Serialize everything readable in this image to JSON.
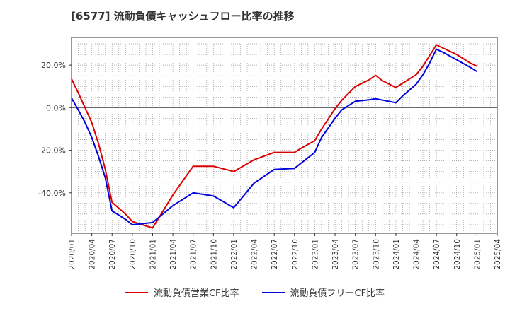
{
  "chart_data": {
    "type": "line",
    "title": "[6577]  流動負債キャッシュフロー比率の推移",
    "xlabel": "",
    "ylabel": "",
    "ylim": [
      -59,
      33
    ],
    "xlim": [
      "2020-01",
      "2025-04"
    ],
    "grid": true,
    "legend_position": "bottom",
    "y_ticks": [
      {
        "value": 20,
        "label": "20.0%"
      },
      {
        "value": 0,
        "label": "0.0%"
      },
      {
        "value": -20,
        "label": "-20.0%"
      },
      {
        "value": -40,
        "label": "-40.0%"
      }
    ],
    "x_ticks": [
      "2020/01",
      "2020/04",
      "2020/07",
      "2020/10",
      "2021/01",
      "2021/04",
      "2021/07",
      "2021/10",
      "2022/01",
      "2022/04",
      "2022/07",
      "2022/10",
      "2023/01",
      "2023/04",
      "2023/07",
      "2023/10",
      "2024/01",
      "2024/04",
      "2024/07",
      "2024/10",
      "2025/01",
      "2025/04"
    ],
    "series": [
      {
        "name": "流動負債営業CF比率",
        "color": "#dd0000",
        "x": [
          "2020-01",
          "2020-02",
          "2020-03",
          "2020-04",
          "2020-05",
          "2020-06",
          "2020-07",
          "2020-09",
          "2020-10",
          "2020-12",
          "2021-01",
          "2021-04",
          "2021-07",
          "2021-10",
          "2022-01",
          "2022-04",
          "2022-07",
          "2022-10",
          "2022-11",
          "2023-01",
          "2023-02",
          "2023-04",
          "2023-05",
          "2023-07",
          "2023-09",
          "2023-10",
          "2023-11",
          "2024-01",
          "2024-04",
          "2024-05",
          "2024-06",
          "2024-07",
          "2024-08",
          "2024-10",
          "2024-12",
          "2025-01"
        ],
        "values": [
          13.5,
          7,
          0,
          -7,
          -17,
          -29,
          -44.5,
          -50,
          -53.5,
          -55.5,
          -56.5,
          -41,
          -27.5,
          -27.5,
          -30,
          -24.5,
          -21,
          -21,
          -19,
          -15.5,
          -10,
          -0.5,
          3.5,
          10,
          13,
          15.2,
          12.7,
          9.5,
          15.5,
          19.5,
          24.5,
          29.5,
          28,
          25,
          21,
          19.5
        ]
      },
      {
        "name": "流動負債フリーCF比率",
        "color": "#0000dd",
        "x": [
          "2020-01",
          "2020-02",
          "2020-03",
          "2020-04",
          "2020-05",
          "2020-06",
          "2020-07",
          "2020-09",
          "2020-10",
          "2021-01",
          "2021-04",
          "2021-07",
          "2021-10",
          "2022-01",
          "2022-04",
          "2022-07",
          "2022-10",
          "2023-01",
          "2023-02",
          "2023-04",
          "2023-05",
          "2023-07",
          "2023-09",
          "2023-10",
          "2024-01",
          "2024-02",
          "2024-04",
          "2024-05",
          "2024-06",
          "2024-07",
          "2024-08",
          "2024-10",
          "2024-12",
          "2025-01"
        ],
        "values": [
          4.5,
          -1,
          -7,
          -14,
          -23,
          -33,
          -48.5,
          -52.5,
          -55,
          -54,
          -46,
          -40,
          -41.5,
          -47,
          -35.5,
          -29,
          -28.5,
          -21,
          -14,
          -5,
          -1,
          3,
          3.7,
          4.2,
          2.3,
          5.5,
          11,
          15.5,
          21,
          27.5,
          26,
          22.5,
          19,
          17
        ]
      }
    ]
  }
}
